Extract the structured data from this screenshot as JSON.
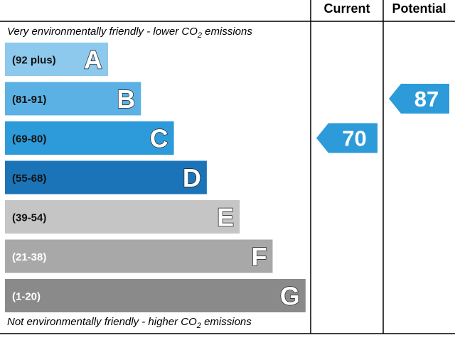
{
  "columns": {
    "current": "Current",
    "potential": "Potential"
  },
  "top_note": {
    "text": "Very environmentally friendly - lower C",
    "sub": "2",
    "tail": " emissions",
    "o": "O"
  },
  "bottom_note": {
    "text": "Not environmentally friendly - higher C",
    "sub": "2",
    "tail": " emissions",
    "o": "O"
  },
  "chart_data": {
    "type": "bar",
    "bands": [
      {
        "letter": "A",
        "range": "(92 plus)",
        "color": "#8cc9ec",
        "letter_color": "#ffffff"
      },
      {
        "letter": "B",
        "range": "(81-91)",
        "color": "#5bb1e3",
        "letter_color": "#ffffff"
      },
      {
        "letter": "C",
        "range": "(69-80)",
        "color": "#2d9bd9",
        "letter_color": "#ffffff"
      },
      {
        "letter": "D",
        "range": "(55-68)",
        "color": "#1c74b8",
        "letter_color": "#ffffff"
      },
      {
        "letter": "E",
        "range": "(39-54)",
        "color": "#c5c5c5",
        "letter_color": "#ffffff"
      },
      {
        "letter": "F",
        "range": "(21-38)",
        "color": "#a8a8a8",
        "letter_color": "#ffffff"
      },
      {
        "letter": "G",
        "range": "(1-20)",
        "color": "#8a8a8a",
        "letter_color": "#ffffff"
      }
    ],
    "current": {
      "value": "70",
      "band": "C",
      "color": "#2d9bd9"
    },
    "potential": {
      "value": "87",
      "band": "B",
      "color": "#2d9bd9"
    }
  }
}
